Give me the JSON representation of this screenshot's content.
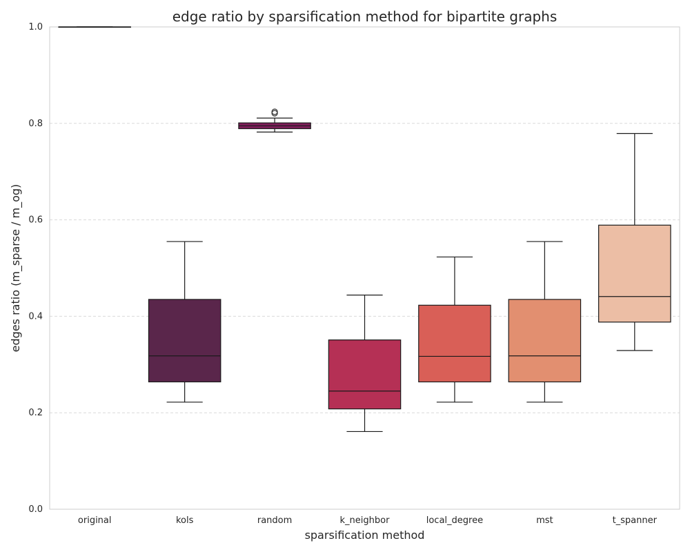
{
  "chart_data": {
    "type": "box",
    "title": "edge ratio by sparsification method for bipartite graphs",
    "xlabel": "sparsification method",
    "ylabel": "edges ratio (m_sparse / m_og)",
    "ylim": [
      0.0,
      1.0
    ],
    "yticks": [
      0.0,
      0.2,
      0.4,
      0.6,
      0.8,
      1.0
    ],
    "y_tick_labels": [
      "0.0",
      "0.2",
      "0.4",
      "0.6",
      "0.8",
      "1.0"
    ],
    "grid": "y-dashed",
    "categories": [
      "original",
      "kols",
      "random",
      "k_neighbor",
      "local_degree",
      "mst",
      "t_spanner"
    ],
    "boxes": [
      {
        "category": "original",
        "whisker_low": 1.0,
        "q1": 1.0,
        "median": 1.0,
        "q3": 1.0,
        "whisker_high": 1.0,
        "outliers": [],
        "color": "#ffffff"
      },
      {
        "category": "kols",
        "whisker_low": 0.222,
        "q1": 0.264,
        "median": 0.318,
        "q3": 0.435,
        "whisker_high": 0.555,
        "outliers": [],
        "color": "#5a264b"
      },
      {
        "category": "random",
        "whisker_low": 0.782,
        "q1": 0.789,
        "median": 0.795,
        "q3": 0.801,
        "whisker_high": 0.811,
        "outliers": [
          0.821,
          0.824
        ],
        "color": "#7e1e5a"
      },
      {
        "category": "k_neighbor",
        "whisker_low": 0.161,
        "q1": 0.208,
        "median": 0.245,
        "q3": 0.351,
        "whisker_high": 0.444,
        "outliers": [],
        "color": "#b53055"
      },
      {
        "category": "local_degree",
        "whisker_low": 0.222,
        "q1": 0.264,
        "median": 0.317,
        "q3": 0.423,
        "whisker_high": 0.523,
        "outliers": [],
        "color": "#d95f57"
      },
      {
        "category": "mst",
        "whisker_low": 0.222,
        "q1": 0.264,
        "median": 0.318,
        "q3": 0.435,
        "whisker_high": 0.555,
        "outliers": [],
        "color": "#e28f70"
      },
      {
        "category": "t_spanner",
        "whisker_low": 0.329,
        "q1": 0.388,
        "median": 0.441,
        "q3": 0.589,
        "whisker_high": 0.779,
        "outliers": [],
        "color": "#ecbea5"
      }
    ]
  }
}
